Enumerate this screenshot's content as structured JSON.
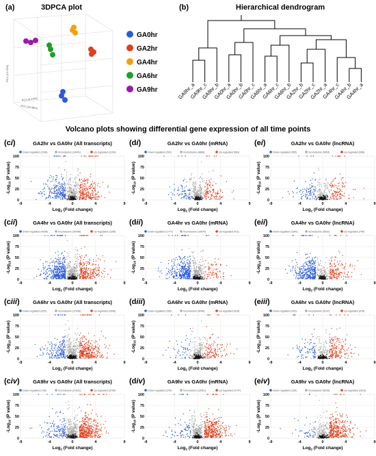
{
  "pca": {
    "panel_label": "(a)",
    "title": "3DPCA plot",
    "axis_labels": [
      "PC1 (25.36%)",
      "PC2 (13.74%)",
      "PC3 (9.23%)"
    ],
    "legend": [
      {
        "name": "GA0hr",
        "color": "#2a5bd7"
      },
      {
        "name": "GA2hr",
        "color": "#e0401c"
      },
      {
        "name": "GA4hr",
        "color": "#f2a20c"
      },
      {
        "name": "GA6hr",
        "color": "#1f9e2a"
      },
      {
        "name": "GA9hr",
        "color": "#9a1aa8"
      }
    ]
  },
  "dendrogram": {
    "panel_label": "(b)",
    "title": "Hierarchical dendrogram",
    "leaves": [
      "GA9hr_a",
      "GA9hr_c",
      "GA9hr_b",
      "GA0hr_a",
      "GA0hr_b",
      "GA0hr_c",
      "GA6hr_a",
      "GA6hr_c",
      "GA6hr_b",
      "GA2hr_b",
      "GA2hr_c",
      "GA2hr_a",
      "GA4hr_c",
      "GA4hr_b",
      "GA4hr_a"
    ]
  },
  "section_title": "Volcano plots showing differential gene expression of all time points",
  "volcano": {
    "xlim": [
      -9,
      9
    ],
    "xticks": [
      -9,
      -4,
      0,
      4,
      9
    ],
    "ylim": [
      0,
      100
    ],
    "yticks": [
      0,
      25,
      50,
      75,
      100
    ],
    "x_label": [
      "Log",
      "2",
      " (Fold change)"
    ],
    "y_label": [
      "-Log",
      "10",
      " (P value)"
    ],
    "legend": [
      "Down-regulated",
      "Inconclusive",
      "Up-regulated"
    ],
    "label_close": ")",
    "panels": [
      {
        "letter": "(c",
        "numeral": "i",
        "title": "GA2hr vs GA0hr (All transcripts)",
        "counts": [
          "(1148)",
          "(19441)",
          "(1293)"
        ]
      },
      {
        "letter": "(d",
        "numeral": "i",
        "title": "GA2hr vs GA0hr (mRNA)",
        "counts": [
          "(392)",
          "(9888)",
          "(581)"
        ]
      },
      {
        "letter": "(e",
        "numeral": "i",
        "title": "GA2hr vs GA0hr (lncRNA)",
        "counts": [
          "(455)",
          "(5454)",
          "(596)"
        ]
      },
      {
        "letter": "(c",
        "numeral": "ii",
        "title": "GA4hr vs GA0hr (All transcripts)",
        "counts": [
          "(4298)",
          "(20458)",
          "(1396)"
        ]
      },
      {
        "letter": "(d",
        "numeral": "ii",
        "title": "GA4hr vs GA0hr (mRNA)",
        "counts": [
          "(1777)",
          "(10670)",
          "(411)"
        ]
      },
      {
        "letter": "(e",
        "numeral": "ii",
        "title": "GA4hr vs GA0hr (lncRNA)",
        "counts": [
          "(1841)",
          "(5532)",
          "(794)"
        ]
      },
      {
        "letter": "(c",
        "numeral": "iii",
        "title": "GA6hr vs GA0hr (All transcripts)",
        "counts": [
          "(925)",
          "(17996)",
          "(1696)"
        ]
      },
      {
        "letter": "(d",
        "numeral": "iii",
        "title": "GA6hr vs GA0hr (mRNA)",
        "counts": [
          "(265)",
          "(9049)",
          "(618)"
        ]
      },
      {
        "letter": "(e",
        "numeral": "iii",
        "title": "GA6hr vs GA0hr (lncRNA)",
        "counts": [
          "(420)",
          "(5147)",
          "(878)"
        ]
      },
      {
        "letter": "(c",
        "numeral": "iv",
        "title": "GA9hr vs GA0hr (All transcripts)",
        "counts": [
          "(726)",
          "(21031)",
          "(3759)"
        ]
      },
      {
        "letter": "(d",
        "numeral": "iv",
        "title": "GA9hr vs GA0hr (mRNA)",
        "counts": [
          "(378)",
          "(10501)",
          "(1747)"
        ]
      },
      {
        "letter": "(e",
        "numeral": "iv",
        "title": "GA9hr vs GA0hr (lncRNA)",
        "counts": [
          "(228)",
          "(5926)",
          "(1623)"
        ]
      }
    ]
  }
}
